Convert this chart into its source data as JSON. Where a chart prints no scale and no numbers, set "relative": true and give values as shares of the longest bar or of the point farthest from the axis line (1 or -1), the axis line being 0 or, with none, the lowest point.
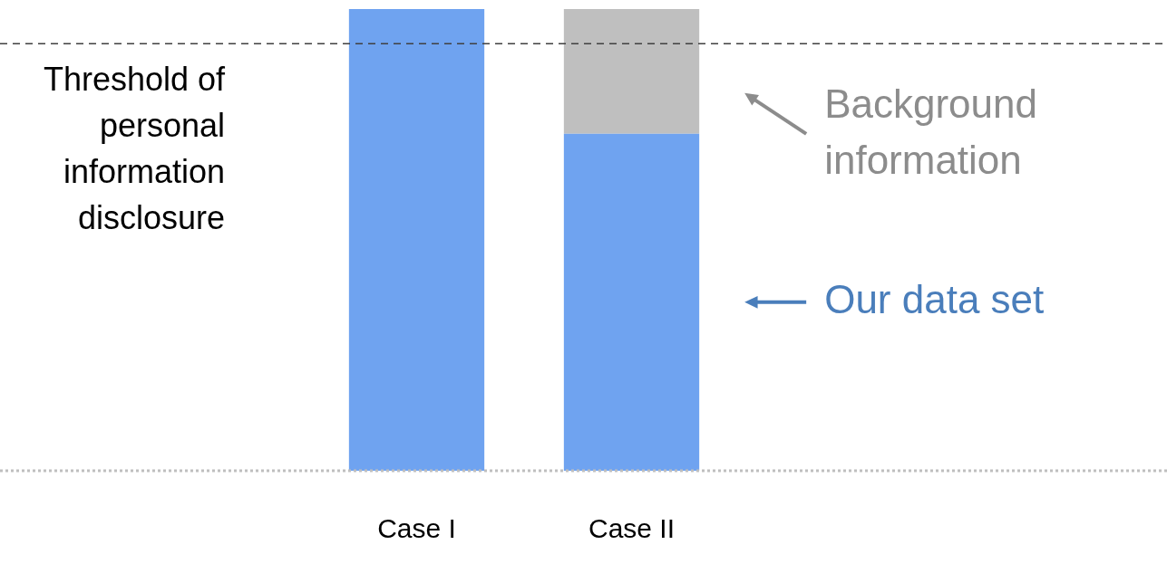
{
  "chart_data": {
    "type": "bar",
    "stacked": true,
    "relative": true,
    "categories": [
      "Case I",
      "Case II"
    ],
    "series": [
      {
        "name": "Our data set",
        "color": "#6fa3f0",
        "values": [
          1,
          0.73
        ]
      },
      {
        "name": "Background information",
        "color": "#bfbfbf",
        "values": [
          null,
          0.27
        ]
      }
    ],
    "ref_lines": [
      {
        "axis": "y",
        "value": 0.925,
        "label": "Threshold of personal information disclosure",
        "line_style": "dashed",
        "color": "#404040"
      }
    ],
    "grid": false,
    "legend": false
  }
}
